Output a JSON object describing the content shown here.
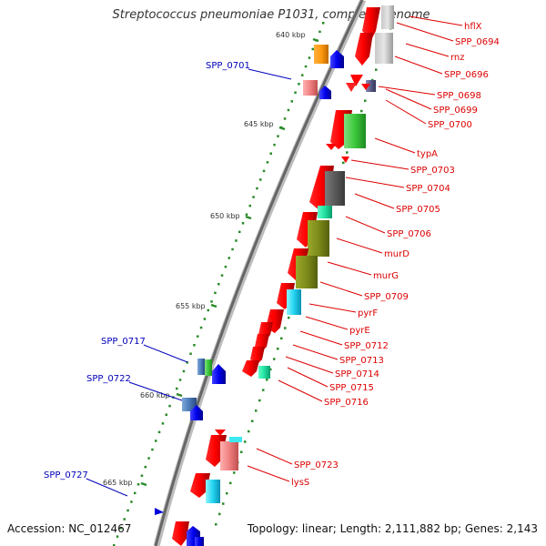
{
  "title": "Streptococcus pneumoniae P1031, complete genome",
  "footer": {
    "accession": "Accession: NC_012467",
    "summary": "Topology: linear; Length: 2,111,882 bp; Genes: 2,143"
  },
  "colors": {
    "backbone": "#888888",
    "label_red": "#dd0000",
    "label_blue": "#0000bb",
    "tick_green": "#2a8a2a"
  },
  "scale_ticks": [
    {
      "label": "640 kbp",
      "kb": 640
    },
    {
      "label": "645 kbp",
      "kb": 645
    },
    {
      "label": "650 kbp",
      "kb": 650
    },
    {
      "label": "655 kbp",
      "kb": 655
    },
    {
      "label": "660 kbp",
      "kb": 660
    },
    {
      "label": "665 kbp",
      "kb": 665
    }
  ],
  "right_labels": [
    "hflX",
    "SPP_0694",
    "rnz",
    "SPP_0696",
    "SPP_0698",
    "SPP_0699",
    "SPP_0700",
    "typA",
    "SPP_0703",
    "SPP_0704",
    "SPP_0705",
    "SPP_0706",
    "murD",
    "murG",
    "SPP_0709",
    "pyrF",
    "pyrE",
    "SPP_0712",
    "SPP_0713",
    "SPP_0714",
    "SPP_0715",
    "SPP_0716",
    "SPP_0723",
    "lysS"
  ],
  "left_labels": [
    "SPP_0701",
    "SPP_0717",
    "SPP_0722",
    "SPP_0727"
  ]
}
